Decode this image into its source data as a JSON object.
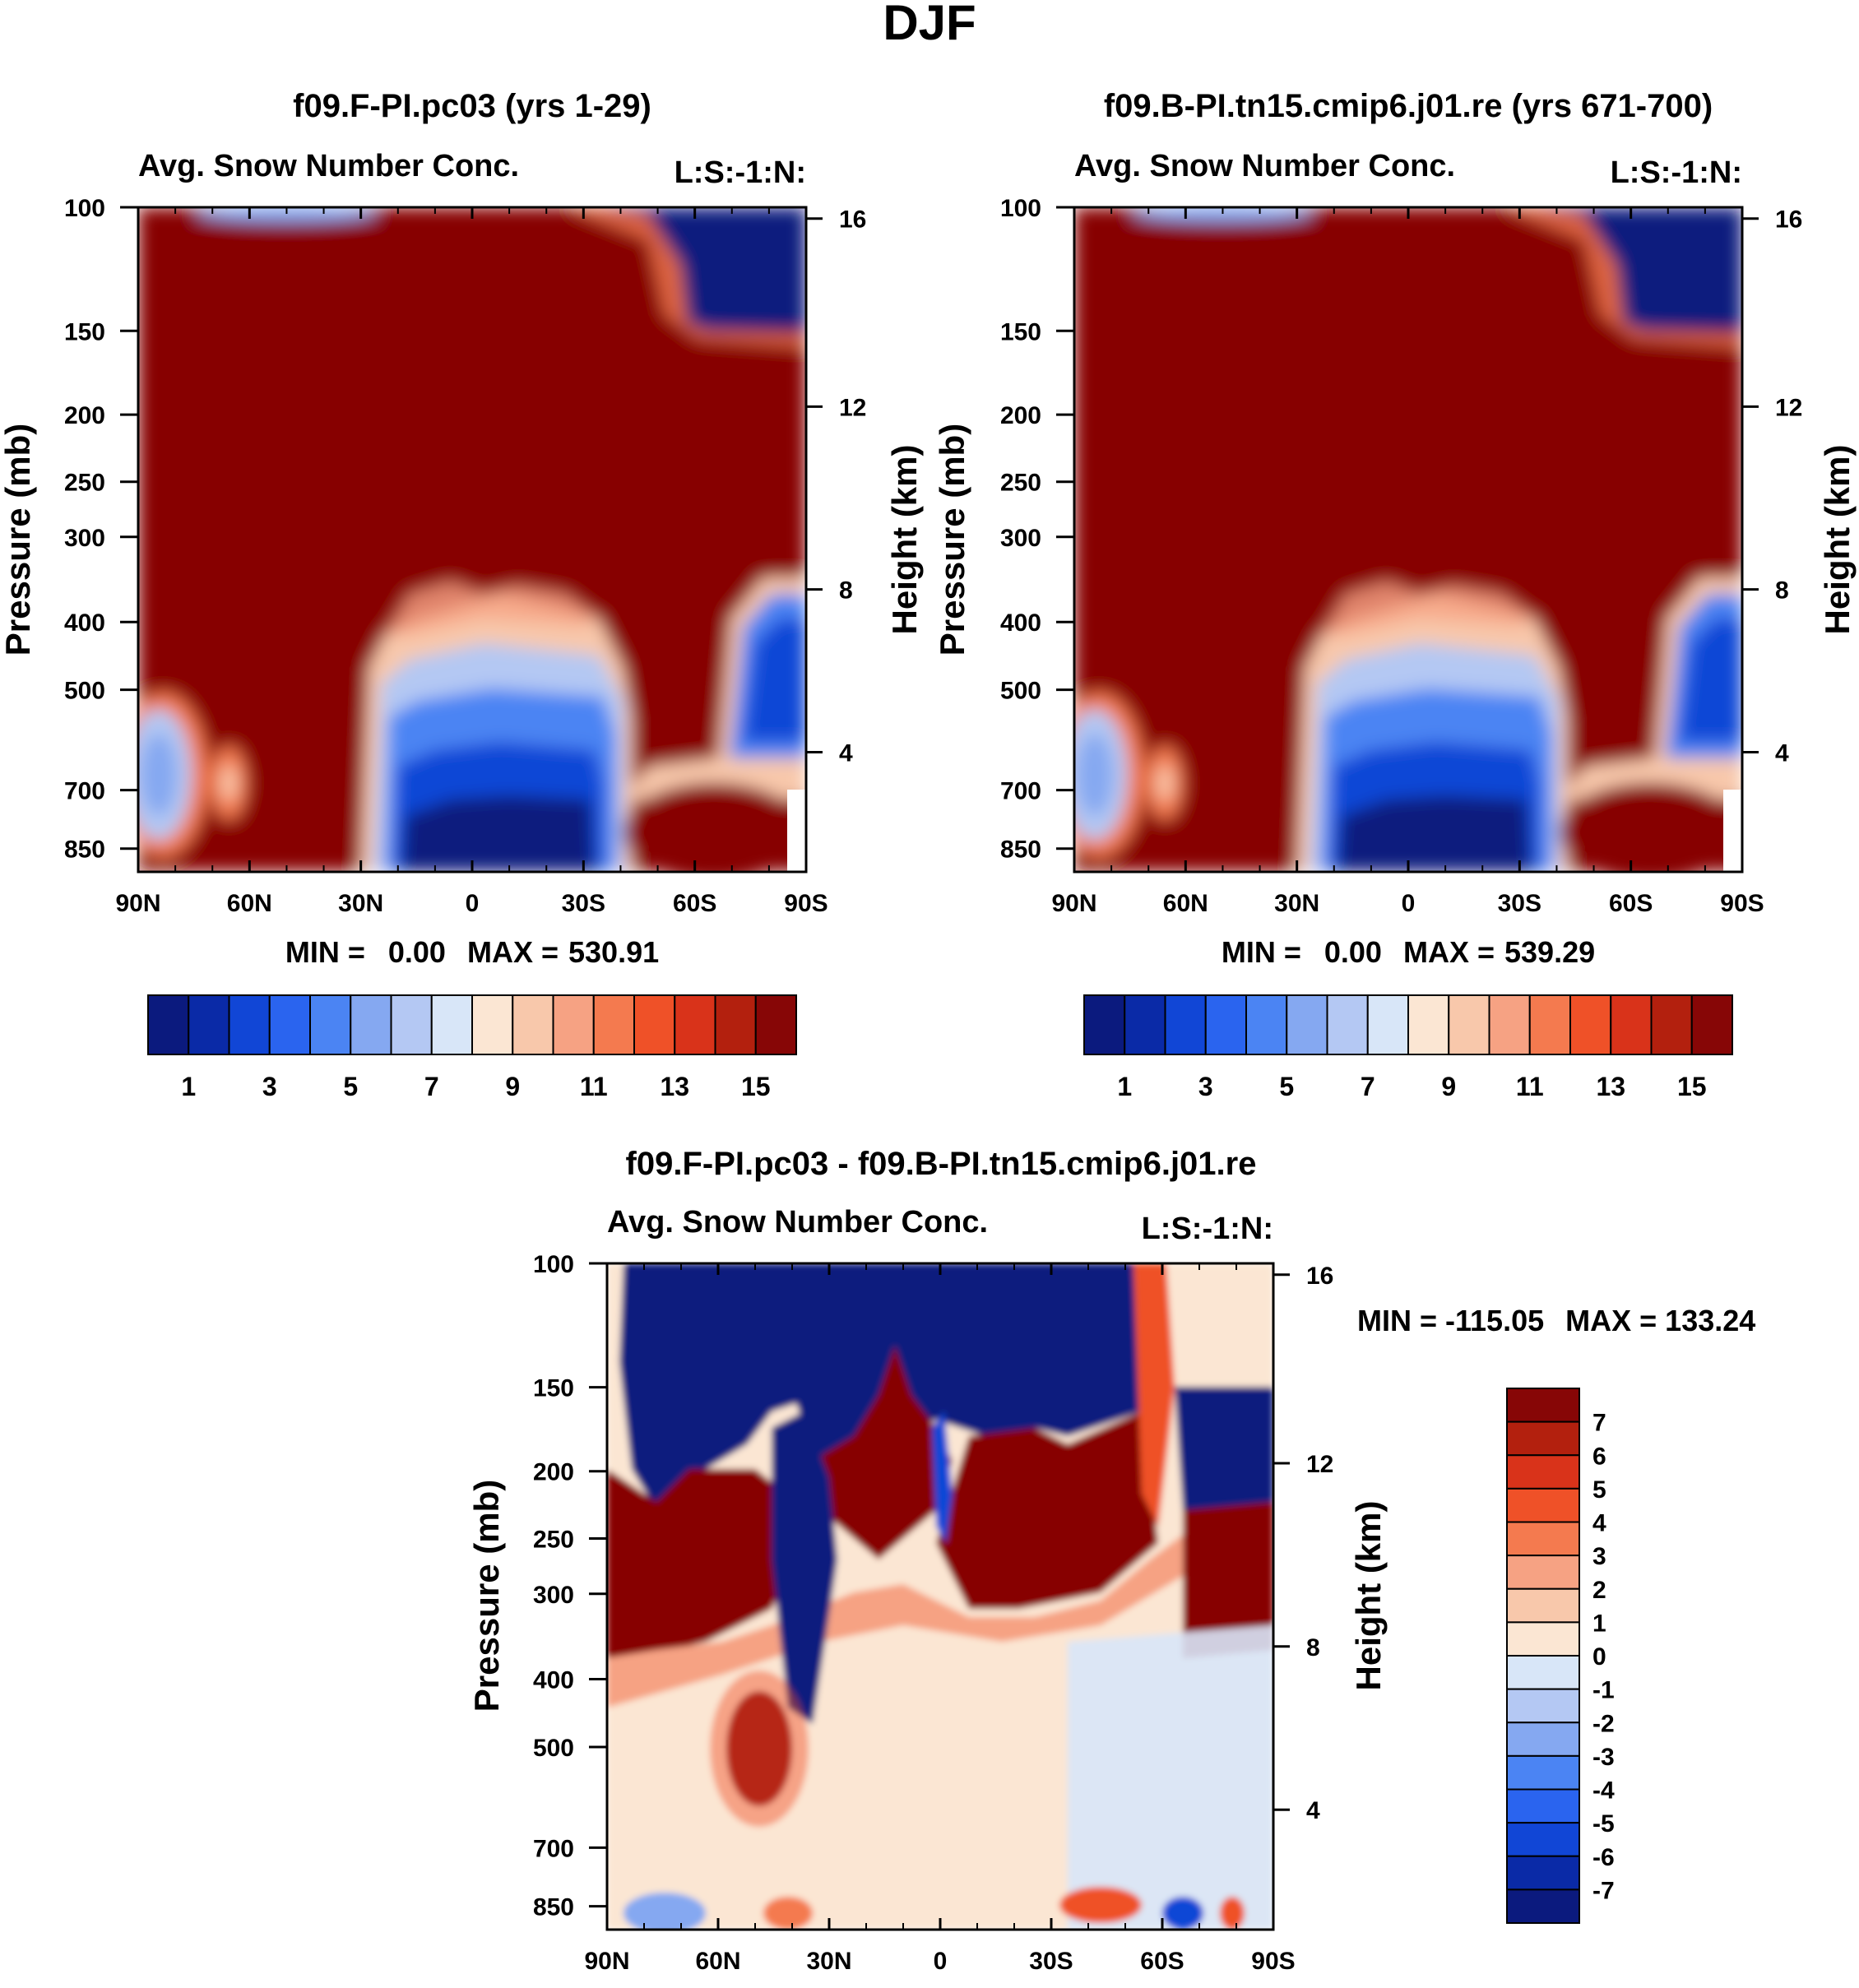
{
  "main_title": "DJF",
  "chart_data": [
    {
      "type": "heatmap",
      "id": "panel_a",
      "title": "f09.F-PI.pc03 (yrs 1-29)",
      "subtitle_left": "Avg. Snow Number Conc.",
      "subtitle_right": "L:S:-1:N:",
      "ylabel": "Pressure (mb)",
      "y2label": "Height (km)",
      "x_ticks": [
        "90N",
        "60N",
        "30N",
        "0",
        "30S",
        "60S",
        "90S"
      ],
      "y_ticks": [
        "100",
        "150",
        "200",
        "250",
        "300",
        "400",
        "500",
        "700",
        "850"
      ],
      "y2_ticks": [
        "16",
        "12",
        "8",
        "4"
      ],
      "stats": {
        "min_label": "MIN =",
        "min": "0.00",
        "max_label": "MAX =",
        "max": "530.91"
      },
      "colorbar_labels": [
        "1",
        "3",
        "5",
        "7",
        "9",
        "11",
        "13",
        "15"
      ]
    },
    {
      "type": "heatmap",
      "id": "panel_b",
      "title": "f09.B-PI.tn15.cmip6.j01.re (yrs 671-700)",
      "subtitle_left": "Avg. Snow Number Conc.",
      "subtitle_right": "L:S:-1:N:",
      "ylabel": "Pressure (mb)",
      "y2label": "Height (km)",
      "x_ticks": [
        "90N",
        "60N",
        "30N",
        "0",
        "30S",
        "60S",
        "90S"
      ],
      "y_ticks": [
        "100",
        "150",
        "200",
        "250",
        "300",
        "400",
        "500",
        "700",
        "850"
      ],
      "y2_ticks": [
        "16",
        "12",
        "8",
        "4"
      ],
      "stats": {
        "min_label": "MIN =",
        "min": "0.00",
        "max_label": "MAX =",
        "max": "539.29"
      },
      "colorbar_labels": [
        "1",
        "3",
        "5",
        "7",
        "9",
        "11",
        "13",
        "15"
      ]
    },
    {
      "type": "heatmap",
      "id": "panel_diff",
      "title": "f09.F-PI.pc03 - f09.B-PI.tn15.cmip6.j01.re",
      "subtitle_left": "Avg. Snow Number Conc.",
      "subtitle_right": "L:S:-1:N:",
      "ylabel": "Pressure (mb)",
      "y2label": "Height (km)",
      "x_ticks": [
        "90N",
        "60N",
        "30N",
        "0",
        "30S",
        "60S",
        "90S"
      ],
      "y_ticks": [
        "100",
        "150",
        "200",
        "250",
        "300",
        "400",
        "500",
        "700",
        "850"
      ],
      "y2_ticks": [
        "16",
        "12",
        "8",
        "4"
      ],
      "stats": {
        "min_label": "MIN =",
        "min": "-115.05",
        "max_label": "MAX =",
        "max": "133.24"
      },
      "colorbar_labels": [
        "7",
        "6",
        "5",
        "4",
        "3",
        "2",
        "1",
        "0",
        "-1",
        "-2",
        "-3",
        "-4",
        "-5",
        "-6",
        "-7"
      ]
    }
  ],
  "colors": {
    "ramp16": [
      "#0b1a7e",
      "#0a2aa7",
      "#1146d6",
      "#2a64ef",
      "#4b84f3",
      "#85a8f1",
      "#b4c8f3",
      "#d8e6f8",
      "#fbe6d3",
      "#f8c8ab",
      "#f6a283",
      "#f47a4f",
      "#ef5128",
      "#d9331a",
      "#b3200e",
      "#870606"
    ]
  }
}
